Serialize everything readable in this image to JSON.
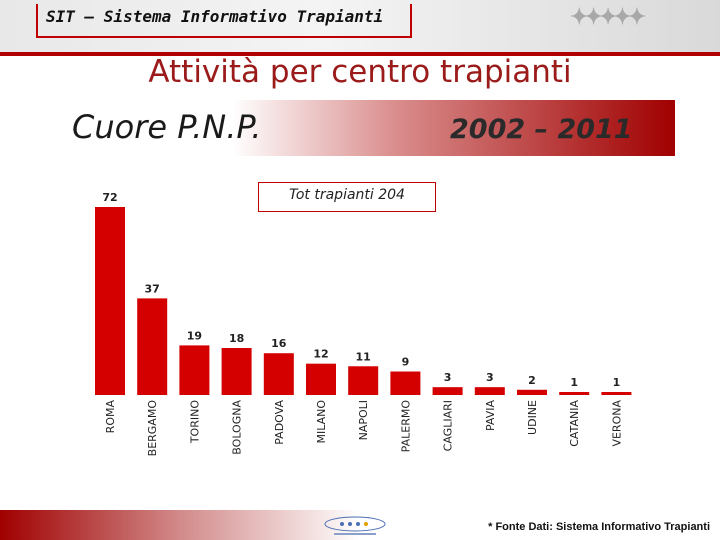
{
  "header": {
    "system_name": "SIT – Sistema Informativo Trapianti"
  },
  "title": "Attività per centro trapianti",
  "subtitle": {
    "organ": "Cuore P.N.P.",
    "period": "2002 – 2011"
  },
  "total_label": "Tot trapianti 204",
  "chart_data": {
    "type": "bar",
    "categories": [
      "ROMA",
      "BERGAMO",
      "TORINO",
      "BOLOGNA",
      "PADOVA",
      "MILANO",
      "NAPOLI",
      "PALERMO",
      "CAGLIARI",
      "PAVIA",
      "UDINE",
      "CATANIA",
      "VERONA"
    ],
    "values": [
      72,
      37,
      19,
      18,
      16,
      12,
      11,
      9,
      3,
      3,
      2,
      1,
      1
    ],
    "ylim": [
      0,
      72
    ],
    "grid": false,
    "legend": "none",
    "bar_color": "#d40000"
  },
  "footer": {
    "source": "* Fonte Dati: Sistema Informativo Trapianti"
  },
  "colors": {
    "accent": "#b00000",
    "title": "#9b1b1b"
  }
}
